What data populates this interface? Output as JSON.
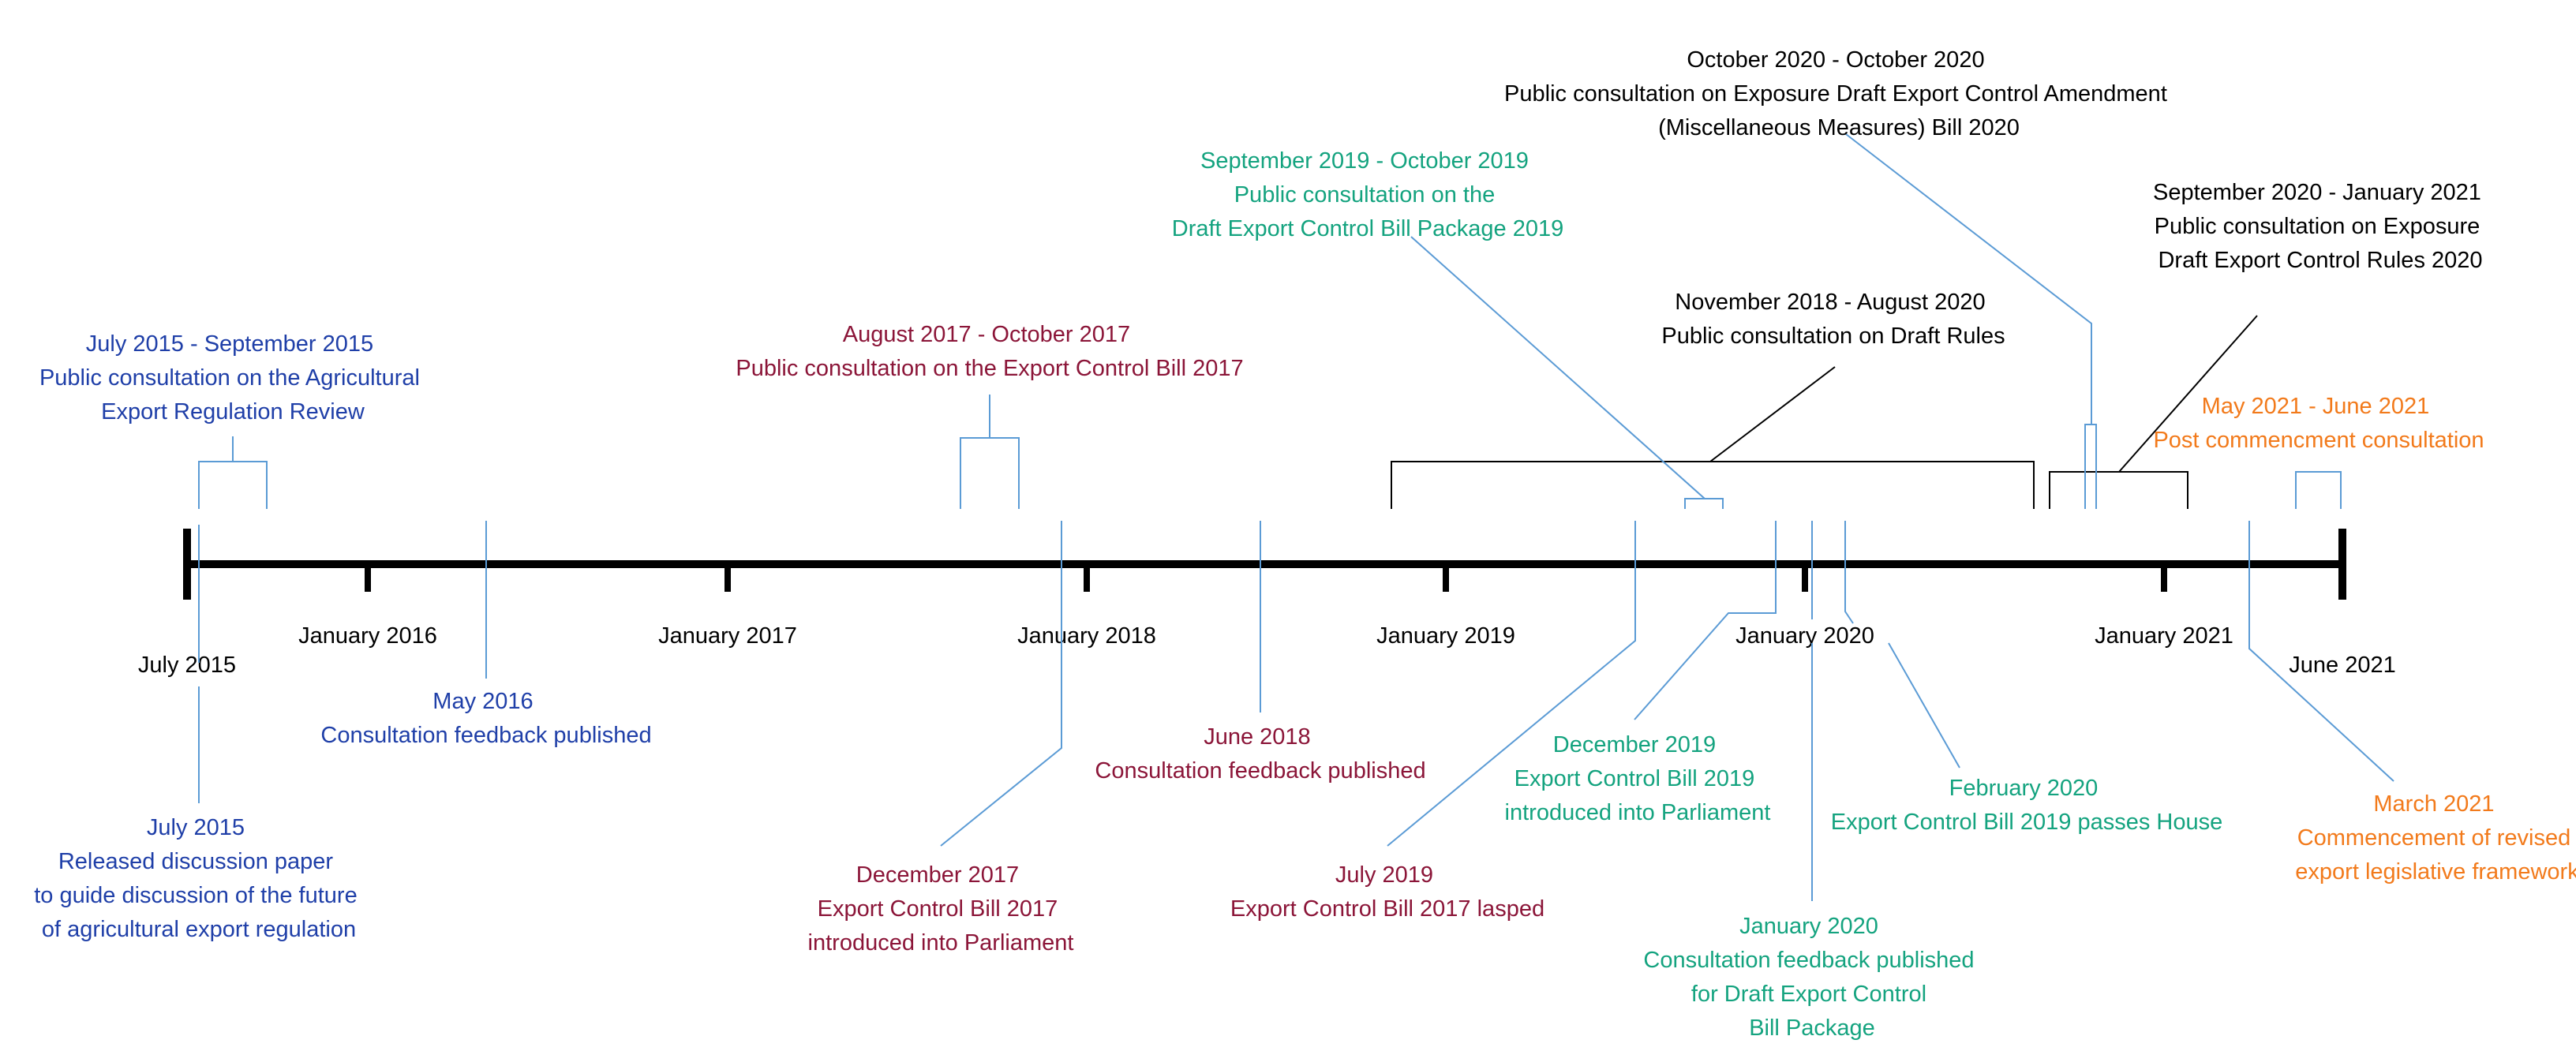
{
  "colors": {
    "axis": "#000000",
    "blue": "#1f3fa8",
    "crimson": "#8b1538",
    "green": "#14a37f",
    "black": "#000000",
    "orange": "#f27a1b",
    "connector": "#5b9bd5"
  },
  "axis": {
    "start_label": "July 2015",
    "end_label": "June 2021",
    "tick_labels": [
      "January 2016",
      "January 2017",
      "January 2018",
      "January 2019",
      "January 2020",
      "January 2021"
    ]
  },
  "events": {
    "jul2015_sep2015": {
      "date": "July 2015 - September 2015",
      "lines": [
        "Public consultation on the Agricultural",
        "Export Regulation Review"
      ]
    },
    "aug2017_oct2017": {
      "date": "August 2017 - October 2017",
      "lines": [
        "Public consultation on the Export Control Bill 2017"
      ]
    },
    "sep2019_oct2019": {
      "date": "September 2019 - October 2019",
      "lines": [
        "Public consultation on the",
        "Draft Export Control Bill Package 2019"
      ]
    },
    "oct2020_oct2020": {
      "date": "October 2020 - October 2020",
      "lines": [
        "Public consultation on Exposure Draft Export Control Amendment",
        "(Miscellaneous Measures) Bill 2020"
      ]
    },
    "sep2020_jan2021": {
      "date": "September 2020 - January 2021",
      "lines": [
        "Public consultation on Exposure",
        "Draft Export Control Rules 2020"
      ]
    },
    "nov2018_aug2020": {
      "date": "November 2018 - August 2020",
      "lines": [
        "Public consultation on Draft Rules"
      ]
    },
    "may2021_jun2021": {
      "date": "May 2021 - June 2021",
      "lines": [
        "Post commencment consultation"
      ]
    },
    "may2016": {
      "date": "May 2016",
      "lines": [
        "Consultation feedback published"
      ]
    },
    "jul2015": {
      "date": "July 2015",
      "lines": [
        "Released discussion paper",
        "to guide discussion of the future",
        "of agricultural export regulation"
      ]
    },
    "jun2018": {
      "date": "June 2018",
      "lines": [
        "Consultation feedback published"
      ]
    },
    "dec2017": {
      "date": "December 2017",
      "lines": [
        "Export Control Bill 2017",
        "introduced into Parliament"
      ]
    },
    "jul2019": {
      "date": "July 2019",
      "lines": [
        "Export Control Bill 2017 lasped"
      ]
    },
    "dec2019": {
      "date": "December 2019",
      "lines": [
        "Export Control Bill 2019",
        "introduced into Parliament"
      ]
    },
    "jan2020": {
      "date": "January 2020",
      "lines": [
        "Consultation feedback published",
        "for Draft Export Control",
        "Bill Package"
      ]
    },
    "feb2020": {
      "date": "February 2020",
      "lines": [
        "Export Control Bill 2019 passes House"
      ]
    },
    "mar2021": {
      "date": "March 2021",
      "lines": [
        "Commencement of revised",
        "export legislative framework"
      ]
    }
  }
}
